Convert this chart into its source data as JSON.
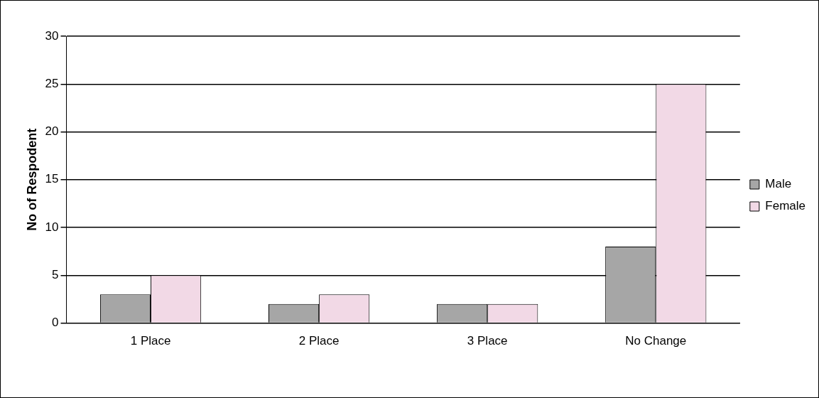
{
  "chart_data": {
    "type": "bar",
    "ylabel": "No of Respodent",
    "categories": [
      "1 Place",
      "2 Place",
      "3 Place",
      "No Change"
    ],
    "series": [
      {
        "name": "Male",
        "color": "#a6a6a6",
        "values": [
          3,
          2,
          2,
          8
        ]
      },
      {
        "name": "Female",
        "color": "#f2d9e6",
        "values": [
          5,
          3,
          2,
          25
        ]
      }
    ],
    "ylim": [
      0,
      30
    ],
    "yticks": [
      0,
      5,
      10,
      15,
      20,
      25,
      30
    ],
    "grid": "y",
    "legend": "right"
  }
}
